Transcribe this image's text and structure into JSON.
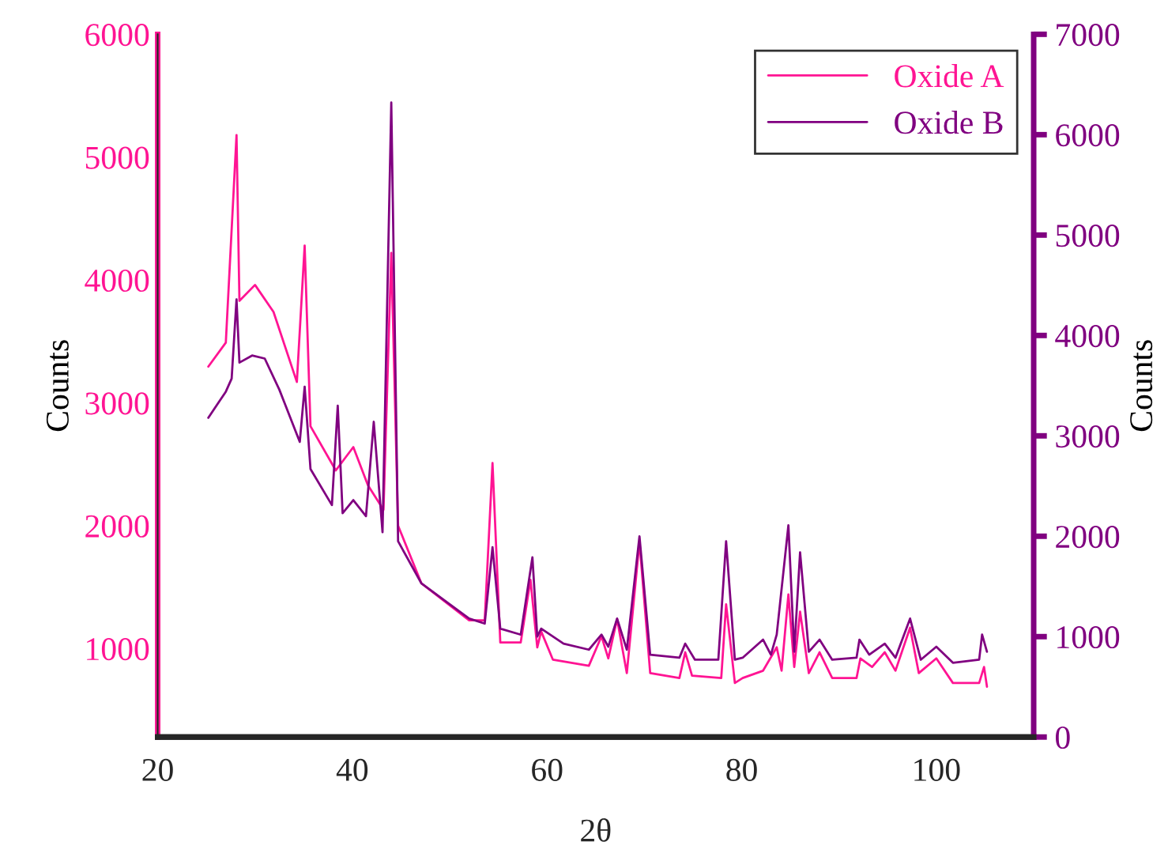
{
  "chart_data": {
    "type": "line",
    "xlabel": "2θ",
    "ylabel": "Counts",
    "y2label": "Counts",
    "xlim": [
      20,
      110
    ],
    "xticks": [
      20,
      40,
      60,
      80,
      100
    ],
    "ylim": [
      280,
      6000
    ],
    "yticks": [
      1000,
      2000,
      3000,
      4000,
      5000,
      6000
    ],
    "y2lim": [
      0,
      7000
    ],
    "y2ticks": [
      0,
      1000,
      2000,
      3000,
      4000,
      5000,
      6000,
      7000
    ],
    "grid": false,
    "legend": "top right",
    "marker": "none",
    "line_style": "solid",
    "series": [
      {
        "name": "Oxide A",
        "color": "#ff1493",
        "axis": "y",
        "x": [
          25.2,
          27,
          28.1,
          28.4,
          30,
          31.9,
          34.3,
          35.1,
          35.7,
          38.3,
          40.1,
          41.6,
          43.2,
          44.0,
          44.7,
          47.1,
          52,
          53.6,
          54.4,
          55.2,
          57.3,
          58.3,
          59,
          59.4,
          60.6,
          64.3,
          65.6,
          66.3,
          67.2,
          68.2,
          69.5,
          70.6,
          73.6,
          74.2,
          74.9,
          77.9,
          78.4,
          79.3,
          80.1,
          82.2,
          83.6,
          84.1,
          84.8,
          85.4,
          86.0,
          86.9,
          88,
          89.3,
          91.8,
          92.2,
          93.4,
          94.7,
          95.8,
          97.3,
          98.2,
          100,
          101.7,
          104.4,
          104.9,
          105.2
        ],
        "values": [
          3295,
          3490,
          5180,
          3830,
          3960,
          3740,
          3170,
          4280,
          2810,
          2450,
          2640,
          2330,
          2130,
          4220,
          2000,
          1530,
          1230,
          1230,
          2510,
          1050,
          1050,
          1560,
          1010,
          1140,
          910,
          860,
          1100,
          920,
          1240,
          800,
          1870,
          800,
          760,
          970,
          780,
          760,
          1360,
          720,
          760,
          820,
          1010,
          820,
          1440,
          850,
          1300,
          800,
          970,
          760,
          760,
          920,
          850,
          970,
          820,
          1170,
          800,
          920,
          720,
          720,
          850,
          690
        ]
      },
      {
        "name": "Oxide B",
        "color": "#800080",
        "axis": "y2",
        "x": [
          25.2,
          27,
          27.6,
          28.1,
          28.4,
          29.7,
          31.0,
          32.5,
          34.6,
          35.1,
          35.7,
          37.9,
          38.5,
          39,
          40.1,
          41.4,
          42.2,
          43.1,
          44.0,
          44.7,
          47.1,
          52,
          53.6,
          54.4,
          55.2,
          57.3,
          58.5,
          59,
          59.4,
          61.7,
          64.3,
          65.6,
          66.3,
          67.2,
          68.2,
          69.5,
          70.6,
          73.6,
          74.2,
          75.2,
          77.6,
          78.4,
          79.3,
          80.1,
          82.2,
          83,
          83.6,
          84.8,
          85.4,
          86,
          86.9,
          88,
          89.3,
          91.8,
          92.1,
          93.1,
          94.7,
          95.8,
          97.3,
          98.4,
          100,
          101.7,
          104.4,
          104.7,
          105.2
        ],
        "values": [
          3180,
          3440,
          3570,
          4360,
          3730,
          3800,
          3770,
          3460,
          2940,
          3490,
          2670,
          2310,
          3300,
          2230,
          2360,
          2200,
          3140,
          2040,
          6320,
          1950,
          1530,
          1180,
          1130,
          1890,
          1080,
          1020,
          1790,
          1000,
          1080,
          930,
          870,
          1020,
          900,
          1180,
          870,
          2000,
          820,
          790,
          930,
          770,
          770,
          1950,
          770,
          790,
          970,
          820,
          1020,
          2110,
          850,
          1840,
          850,
          970,
          770,
          790,
          970,
          820,
          930,
          790,
          1180,
          770,
          900,
          740,
          770,
          1020,
          850
        ]
      }
    ]
  }
}
